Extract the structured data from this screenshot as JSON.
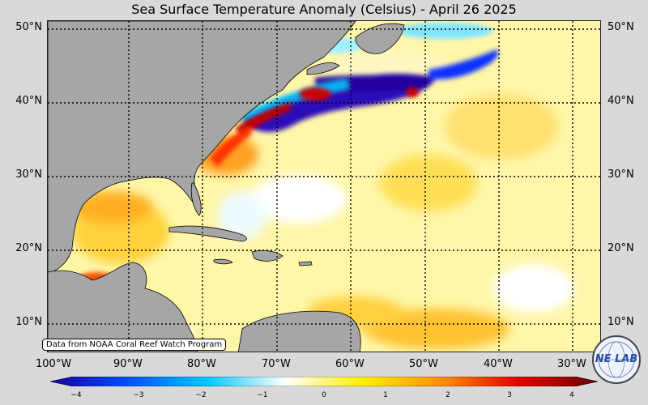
{
  "title": "Sea Surface Temperature Anomaly (Celsius) - April 26 2025",
  "lat_labels": [
    "50°N",
    "40°N",
    "30°N",
    "20°N",
    "10°N"
  ],
  "lon_labels": [
    "100°W",
    "90°W",
    "80°W",
    "70°W",
    "60°W",
    "50°W",
    "40°W",
    "30°W"
  ],
  "credit": "Data from NOAA Coral Reef Watch Program",
  "colorbar": {
    "ticks": [
      "−4",
      "−3",
      "−2",
      "−1",
      "0",
      "1",
      "2",
      "3",
      "4"
    ],
    "colors": [
      "#1a00a0",
      "#0050ff",
      "#00c8ff",
      "#ffffff",
      "#fff000",
      "#ff9000",
      "#e00000",
      "#700000"
    ]
  },
  "logo": {
    "text": "NE LAB"
  },
  "colors": {
    "land": "#a6a6a6",
    "grid": "#000000",
    "background": "#d9d9d9"
  }
}
